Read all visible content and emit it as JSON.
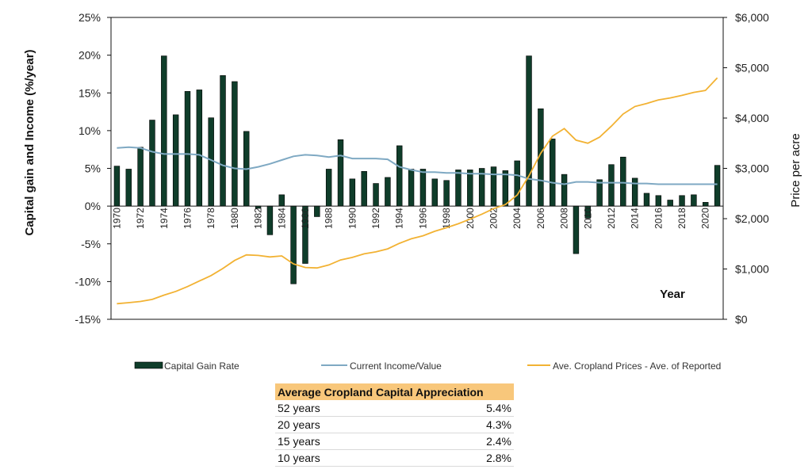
{
  "chart_data": {
    "type": "bar+line",
    "xlabel": "Year",
    "ylabel": "Capital gain and Income  (%/year)",
    "y2label": "Price per acre",
    "ylim": [
      -15,
      25
    ],
    "y2lim": [
      0,
      6000
    ],
    "ytick_labels": [
      "25%",
      "20%",
      "15%",
      "10%",
      "5%",
      "0%",
      "-5%",
      "-10%",
      "-15%"
    ],
    "y2tick_labels": [
      "$6,000",
      "$5,000",
      "$4,000",
      "$3,000",
      "$2,000",
      "$1,000",
      "$0"
    ],
    "years": [
      1970,
      1971,
      1972,
      1973,
      1974,
      1975,
      1976,
      1977,
      1978,
      1979,
      1980,
      1981,
      1982,
      1983,
      1984,
      1985,
      1986,
      1987,
      1988,
      1989,
      1990,
      1991,
      1992,
      1993,
      1994,
      1995,
      1996,
      1997,
      1998,
      1999,
      2000,
      2001,
      2002,
      2003,
      2004,
      2005,
      2006,
      2007,
      2008,
      2009,
      2010,
      2011,
      2012,
      2013,
      2014,
      2015,
      2016,
      2017,
      2018,
      2019,
      2020,
      2021
    ],
    "xtick_labels": [
      "1970",
      "1972",
      "1974",
      "1976",
      "1978",
      "1980",
      "1982",
      "1984",
      "1986",
      "1988",
      "1990",
      "1992",
      "1994",
      "1996",
      "1998",
      "2000",
      "2002",
      "2004",
      "2006",
      "2008",
      "2010",
      "2012",
      "2014",
      "2016",
      "2018",
      "2020"
    ],
    "series": [
      {
        "name": "Capital Gain Rate",
        "kind": "bar",
        "axis": "left",
        "color": "#0f3d2a",
        "values": [
          5.3,
          4.9,
          7.8,
          11.4,
          19.9,
          12.1,
          15.2,
          15.4,
          11.7,
          17.3,
          16.5,
          9.9,
          -0.3,
          -3.8,
          1.5,
          -10.3,
          -7.6,
          -1.4,
          4.9,
          8.8,
          3.6,
          4.6,
          3.0,
          3.8,
          8.0,
          4.9,
          4.9,
          3.6,
          3.4,
          4.8,
          4.8,
          5.0,
          5.2,
          4.7,
          6.0,
          19.9,
          12.9,
          8.9,
          4.2,
          -6.3,
          -1.6,
          3.5,
          5.5,
          6.5,
          3.7,
          1.7,
          1.4,
          0.8,
          1.4,
          1.5,
          0.5,
          5.4
        ]
      },
      {
        "name": "Current Income/Value",
        "kind": "line",
        "axis": "left",
        "color": "#7fa9c3",
        "values": [
          7.7,
          7.8,
          7.7,
          7.2,
          6.9,
          6.9,
          6.9,
          6.8,
          6.1,
          5.4,
          5.0,
          4.9,
          5.2,
          5.6,
          6.1,
          6.6,
          6.8,
          6.7,
          6.5,
          6.7,
          6.3,
          6.3,
          6.3,
          6.2,
          5.2,
          4.8,
          4.5,
          4.5,
          4.4,
          4.4,
          4.3,
          4.3,
          4.2,
          4.2,
          4.1,
          3.6,
          3.4,
          3.1,
          2.9,
          3.2,
          3.2,
          3.1,
          3.1,
          3.1,
          3.0,
          3.0,
          2.9,
          2.9,
          2.9,
          2.9,
          2.9,
          2.9
        ]
      },
      {
        "name": "Ave. Cropland Prices  - Ave. of Reported",
        "kind": "line",
        "axis": "right",
        "color": "#f2b233",
        "values": [
          310,
          330,
          355,
          395,
          480,
          555,
          650,
          760,
          870,
          1010,
          1170,
          1280,
          1270,
          1240,
          1260,
          1100,
          1030,
          1020,
          1080,
          1180,
          1230,
          1300,
          1340,
          1400,
          1510,
          1600,
          1660,
          1750,
          1820,
          1900,
          1990,
          2090,
          2200,
          2280,
          2470,
          2850,
          3300,
          3640,
          3790,
          3560,
          3500,
          3620,
          3840,
          4080,
          4230,
          4290,
          4360,
          4400,
          4450,
          4510,
          4550,
          4800
        ]
      }
    ],
    "legend_position": "bottom"
  },
  "summary_table": {
    "header": "Average Cropland Capital Appreciation",
    "rows": [
      {
        "label": "52 years",
        "value": "5.4%"
      },
      {
        "label": "20 years",
        "value": "4.3%"
      },
      {
        "label": "15 years",
        "value": "2.4%"
      },
      {
        "label": "10 years",
        "value": "2.8%"
      }
    ]
  }
}
